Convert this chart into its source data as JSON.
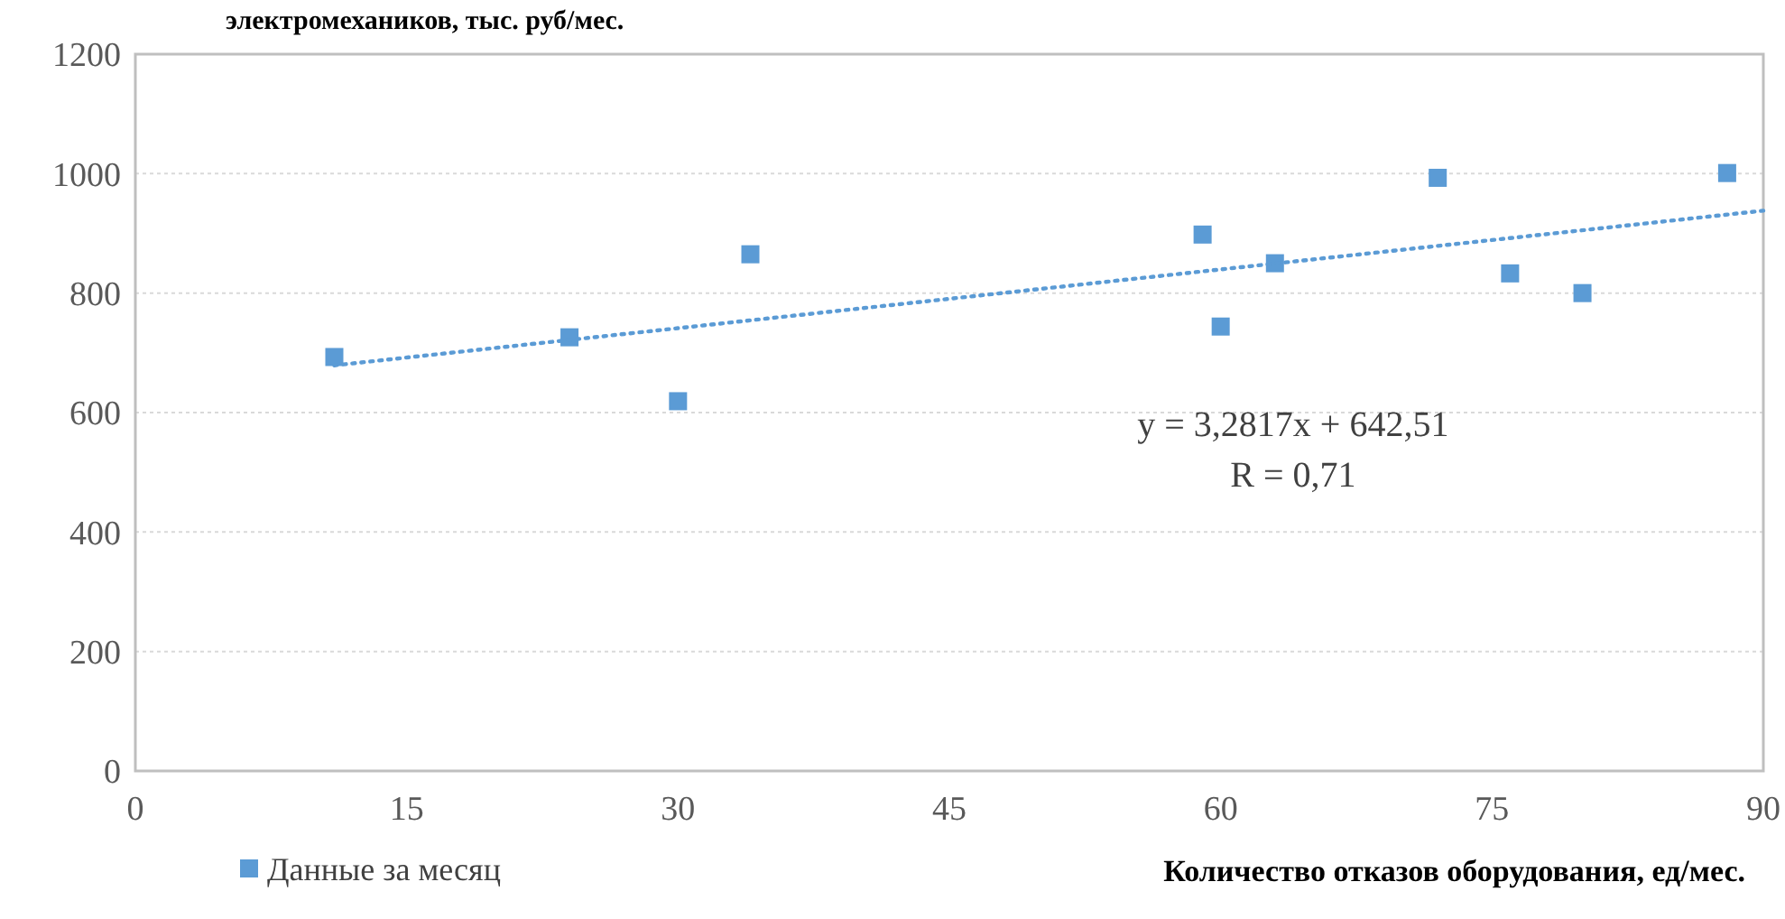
{
  "chart_data": {
    "type": "scatter",
    "ylabel": "электромехаников, тыс. руб/мес.",
    "xlabel": "Количество отказов оборудования, ед/мес.",
    "xlim": [
      0,
      90
    ],
    "xticks": [
      0,
      15,
      30,
      45,
      60,
      75,
      90
    ],
    "ylim": [
      0,
      1200
    ],
    "yticks": [
      0,
      200,
      400,
      600,
      800,
      1000,
      1200
    ],
    "grid": "y",
    "legend": "bottom left",
    "marker": "square",
    "series": [
      {
        "name": "Данные за месяц",
        "color": "#5b9bd5",
        "x": [
          11,
          24,
          30,
          34,
          59,
          60,
          63,
          72,
          76,
          80,
          88
        ],
        "values": [
          693,
          726,
          619,
          865,
          898,
          744,
          850,
          993,
          833,
          800,
          1001
        ]
      },
      {
        "type": "line",
        "line_style": "dotted",
        "marker": "none",
        "color": "#5b9bd5",
        "x": [
          11,
          90
        ],
        "values": [
          679,
          938
        ]
      }
    ],
    "annotations": [
      "y = 3,2817x + 642,51",
      "R = 0,71"
    ]
  }
}
